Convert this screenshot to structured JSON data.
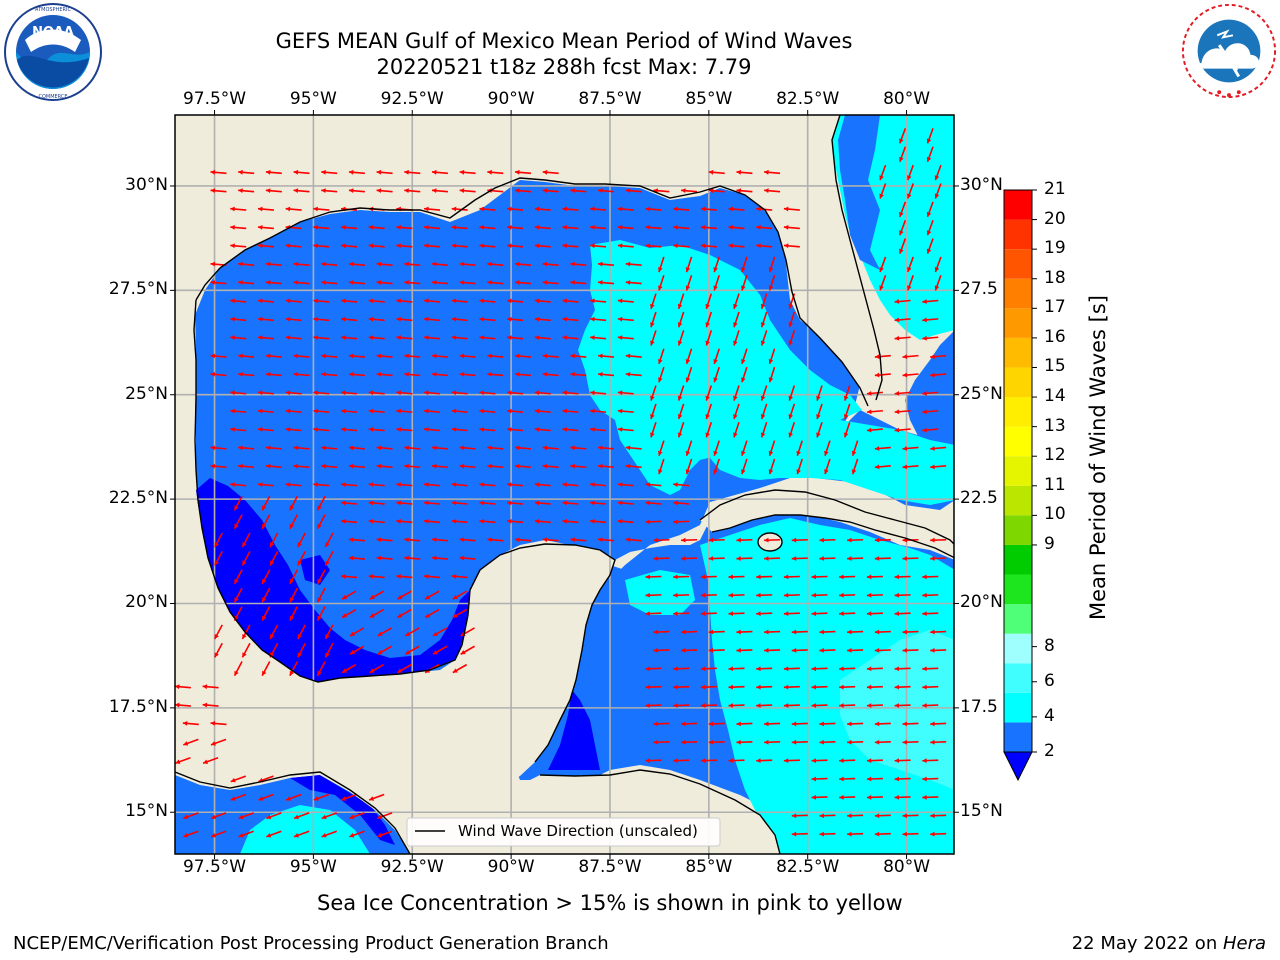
{
  "header": {
    "title_line1": "GEFS MEAN Gulf of Mexico Mean Period of Wind Waves",
    "title_line2": "20220521 t18z 288h fcst   Max: 7.79"
  },
  "logos": {
    "left": {
      "name": "NOAA",
      "ring_text": "NATIONAL OCEANIC AND ATMOSPHERIC ADMINISTRATION · U.S. DEPARTMENT OF COMMERCE"
    },
    "right": {
      "name": "NATIONAL WEATHER SERVICE"
    }
  },
  "colors": {
    "land": "#efecdc",
    "bins": [
      "#1874ff",
      "#00ffff",
      "#40fefe",
      "#9ffefe",
      "#50ff78",
      "#1ee61e",
      "#00cc00",
      "#7fd700",
      "#bbe600",
      "#e5f500",
      "#ffff00",
      "#ffee00",
      "#ffd500",
      "#ffbb00",
      "#ff9900",
      "#ff7f00",
      "#ff5500",
      "#ff3300",
      "#ff0000"
    ],
    "under": "#0000ff",
    "arrow": "#ff0000",
    "grid": "#b0b0b0"
  },
  "chart_data": {
    "type": "heatmap",
    "title": "GEFS MEAN Gulf of Mexico Mean Period of Wind Waves",
    "subtitle": "20220521 t18z 288h fcst   Max: 7.79",
    "variable": "Mean Period of Wind Waves",
    "units": "s",
    "max": 7.79,
    "lon_range": [
      -98.5,
      -78.8
    ],
    "lat_range": [
      14.0,
      31.7
    ],
    "x_ticks": [
      "97.5°W",
      "95°W",
      "92.5°W",
      "90°W",
      "87.5°W",
      "85°W",
      "82.5°W",
      "80°W"
    ],
    "x_tick_values": [
      -97.5,
      -95,
      -92.5,
      -90,
      -87.5,
      -85,
      -82.5,
      -80
    ],
    "y_ticks_left": [
      "30°N",
      "27.5°N",
      "25°N",
      "22.5°N",
      "20°N",
      "17.5°N",
      "15°N"
    ],
    "y_ticks_right": [
      "30°N",
      "27.5",
      "25°N",
      "22.5",
      "20°N",
      "17.5",
      "15°N"
    ],
    "y_tick_values": [
      30,
      27.5,
      25,
      22.5,
      20,
      17.5,
      15
    ],
    "grid": true,
    "colorbar": {
      "label": "Mean Period of Wind Waves [s]",
      "levels": [
        2,
        3,
        4,
        5,
        6,
        7,
        8,
        9,
        10,
        11,
        12,
        13,
        14,
        15,
        16,
        17,
        18,
        19,
        20,
        21
      ],
      "tick_labels": [
        "2",
        "4",
        "6",
        "8",
        "9",
        "10",
        "11",
        "12",
        "13",
        "14",
        "15",
        "16",
        "17",
        "18",
        "19",
        "20",
        "21"
      ],
      "tick_values": [
        2,
        4,
        6,
        8,
        9,
        10,
        11,
        12,
        13,
        14,
        15,
        16,
        17,
        18,
        19,
        20,
        21
      ],
      "extend": "min"
    },
    "legend": {
      "label": "Wind Wave Direction (unscaled)",
      "placement": "lower-center"
    },
    "regions": [
      {
        "area": "western Gulf shelf (Mexico coast)",
        "period_range": [
          0,
          2
        ]
      },
      {
        "area": "Bay of Campeche interior",
        "period_range": [
          0,
          2
        ]
      },
      {
        "area": "central and northern Gulf",
        "period_range": [
          2,
          4
        ]
      },
      {
        "area": "eastern Gulf / Florida shelf",
        "period_range": [
          4,
          6
        ]
      },
      {
        "area": "western Caribbean south of Cuba",
        "period_range": [
          4,
          6
        ]
      },
      {
        "area": "Atlantic east of Florida",
        "period_range": [
          4,
          6
        ]
      },
      {
        "area": "Gulf of Honduras",
        "period_range": [
          0,
          2
        ]
      }
    ],
    "wind_direction": {
      "western_gulf": "toward west",
      "bay_of_campeche": "toward southwest",
      "eastern_gulf": "toward south-southeast",
      "caribbean": "toward west"
    }
  },
  "footer": {
    "caption": "Sea Ice Concentration > 15% is shown in pink to yellow",
    "left": "NCEP/EMC/Verification Post Processing Product Generation Branch",
    "right_prefix": "22 May 2022 on ",
    "right_host": "Hera"
  }
}
